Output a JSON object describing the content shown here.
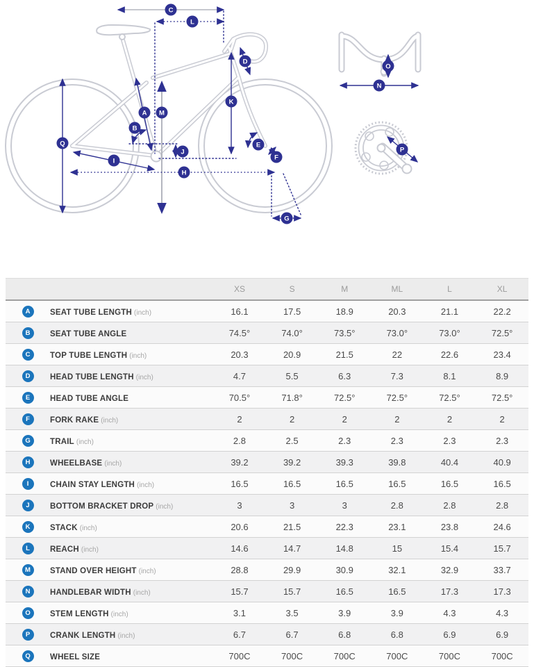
{
  "colors": {
    "accent_blue": "#1b75bc",
    "diagram_navy": "#2e3192",
    "bike_outline_gray": "#c9cbd3"
  },
  "diagram": {
    "marker_letters": [
      "A",
      "B",
      "C",
      "D",
      "E",
      "F",
      "G",
      "H",
      "I",
      "J",
      "K",
      "L",
      "M",
      "N",
      "O",
      "P",
      "Q"
    ]
  },
  "table": {
    "size_columns": [
      "XS",
      "S",
      "M",
      "ML",
      "L",
      "XL"
    ],
    "rows": [
      {
        "letter": "A",
        "label": "SEAT TUBE LENGTH",
        "unit": "(inch)",
        "values": [
          "16.1",
          "17.5",
          "18.9",
          "20.3",
          "21.1",
          "22.2"
        ]
      },
      {
        "letter": "B",
        "label": "SEAT TUBE ANGLE",
        "unit": "",
        "values": [
          "74.5°",
          "74.0°",
          "73.5°",
          "73.0°",
          "73.0°",
          "72.5°"
        ]
      },
      {
        "letter": "C",
        "label": "TOP TUBE LENGTH",
        "unit": "(inch)",
        "values": [
          "20.3",
          "20.9",
          "21.5",
          "22",
          "22.6",
          "23.4"
        ]
      },
      {
        "letter": "D",
        "label": "HEAD TUBE LENGTH",
        "unit": "(inch)",
        "values": [
          "4.7",
          "5.5",
          "6.3",
          "7.3",
          "8.1",
          "8.9"
        ]
      },
      {
        "letter": "E",
        "label": "HEAD TUBE ANGLE",
        "unit": "",
        "values": [
          "70.5°",
          "71.8°",
          "72.5°",
          "72.5°",
          "72.5°",
          "72.5°"
        ]
      },
      {
        "letter": "F",
        "label": "FORK RAKE",
        "unit": "(inch)",
        "values": [
          "2",
          "2",
          "2",
          "2",
          "2",
          "2"
        ]
      },
      {
        "letter": "G",
        "label": "TRAIL",
        "unit": "(inch)",
        "values": [
          "2.8",
          "2.5",
          "2.3",
          "2.3",
          "2.3",
          "2.3"
        ]
      },
      {
        "letter": "H",
        "label": "WHEELBASE",
        "unit": "(inch)",
        "values": [
          "39.2",
          "39.2",
          "39.3",
          "39.8",
          "40.4",
          "40.9"
        ]
      },
      {
        "letter": "I",
        "label": "CHAIN STAY LENGTH",
        "unit": "(inch)",
        "values": [
          "16.5",
          "16.5",
          "16.5",
          "16.5",
          "16.5",
          "16.5"
        ]
      },
      {
        "letter": "J",
        "label": "BOTTOM BRACKET DROP",
        "unit": "(inch)",
        "values": [
          "3",
          "3",
          "3",
          "2.8",
          "2.8",
          "2.8"
        ]
      },
      {
        "letter": "K",
        "label": "STACK",
        "unit": "(inch)",
        "values": [
          "20.6",
          "21.5",
          "22.3",
          "23.1",
          "23.8",
          "24.6"
        ]
      },
      {
        "letter": "L",
        "label": "REACH",
        "unit": "(inch)",
        "values": [
          "14.6",
          "14.7",
          "14.8",
          "15",
          "15.4",
          "15.7"
        ]
      },
      {
        "letter": "M",
        "label": "STAND OVER HEIGHT",
        "unit": "(inch)",
        "values": [
          "28.8",
          "29.9",
          "30.9",
          "32.1",
          "32.9",
          "33.7"
        ]
      },
      {
        "letter": "N",
        "label": "HANDLEBAR WIDTH",
        "unit": "(inch)",
        "values": [
          "15.7",
          "15.7",
          "16.5",
          "16.5",
          "17.3",
          "17.3"
        ]
      },
      {
        "letter": "O",
        "label": "STEM LENGTH",
        "unit": "(inch)",
        "values": [
          "3.1",
          "3.5",
          "3.9",
          "3.9",
          "4.3",
          "4.3"
        ]
      },
      {
        "letter": "P",
        "label": "CRANK LENGTH",
        "unit": "(inch)",
        "values": [
          "6.7",
          "6.7",
          "6.8",
          "6.8",
          "6.9",
          "6.9"
        ]
      },
      {
        "letter": "Q",
        "label": "WHEEL SIZE",
        "unit": "",
        "values": [
          "700C",
          "700C",
          "700C",
          "700C",
          "700C",
          "700C"
        ]
      }
    ]
  }
}
